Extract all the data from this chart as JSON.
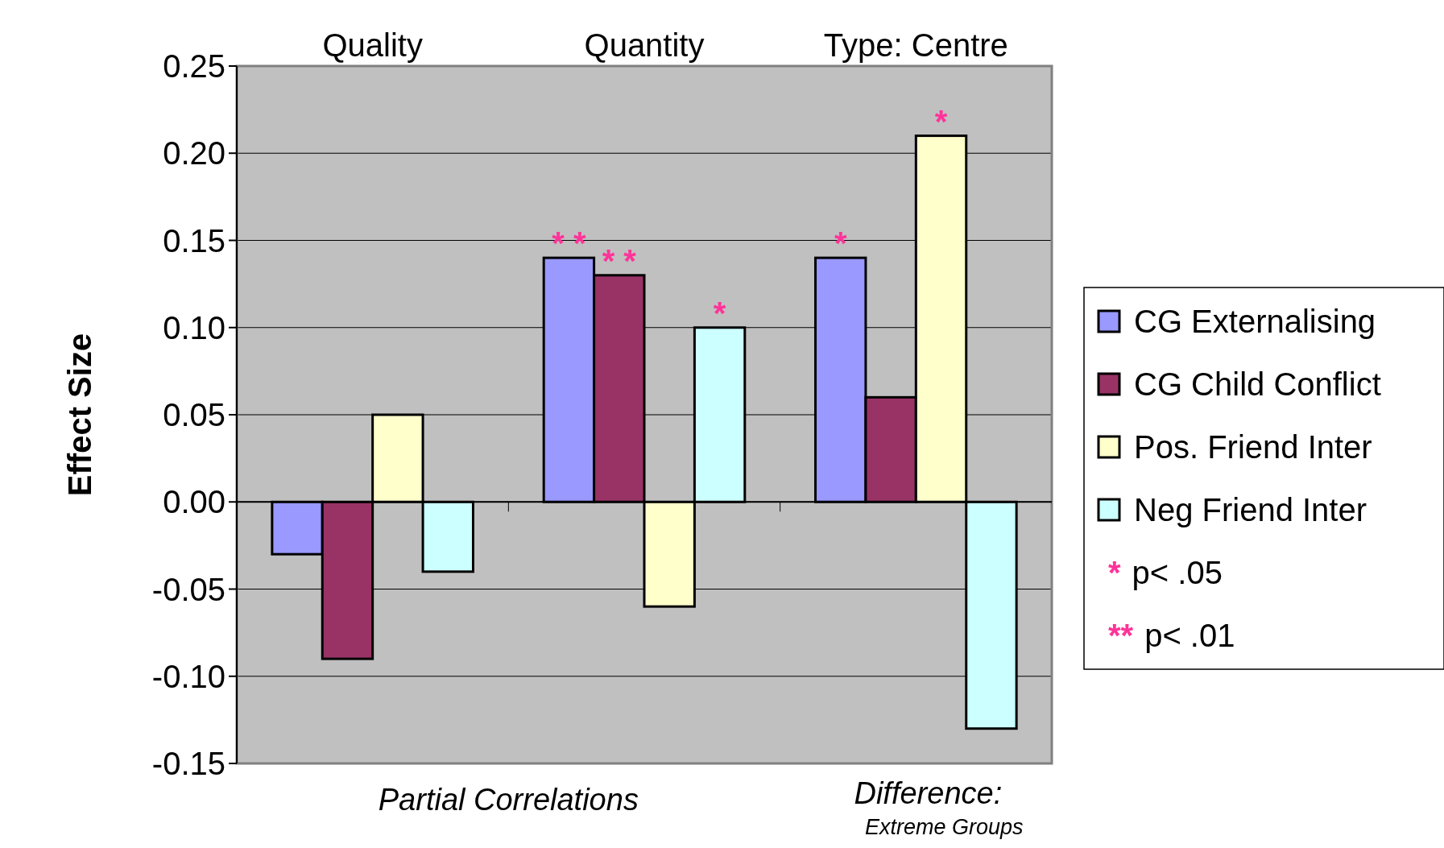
{
  "chart_data": {
    "type": "bar",
    "ylabel": "Effect Size",
    "categories": [
      "Quality",
      "Quantity",
      "Type: Centre"
    ],
    "series": [
      {
        "name": "CG Externalising",
        "color": "#9999ff",
        "values": [
          -0.03,
          0.14,
          0.14
        ],
        "value_labels": [
          null,
          "* *",
          "*"
        ]
      },
      {
        "name": "CG Child Conflict",
        "color": "#993366",
        "values": [
          -0.09,
          0.13,
          0.06
        ],
        "value_labels": [
          null,
          "* *",
          null
        ]
      },
      {
        "name": "Pos. Friend Inter",
        "color": "#ffffcc",
        "values": [
          0.05,
          -0.06,
          0.21
        ],
        "value_labels": [
          null,
          null,
          "*"
        ]
      },
      {
        "name": "Neg Friend Inter",
        "color": "#ccffff",
        "values": [
          -0.04,
          0.1,
          -0.13
        ],
        "value_labels": [
          null,
          "*",
          null
        ]
      }
    ],
    "ylim": [
      -0.15,
      0.25
    ],
    "yticks": [
      {
        "value": -0.15,
        "label": "-0.15"
      },
      {
        "value": -0.1,
        "label": "-0.10"
      },
      {
        "value": -0.05,
        "label": "-0.05"
      },
      {
        "value": 0,
        "label": "0.00"
      },
      {
        "value": 0.05,
        "label": "0.05"
      },
      {
        "value": 0.1,
        "label": "0.10"
      },
      {
        "value": 0.15,
        "label": "0.15"
      },
      {
        "value": 0.2,
        "label": "0.20"
      },
      {
        "value": 0.25,
        "label": "0.25"
      }
    ],
    "grid": "y",
    "legend": "right",
    "annotations": [
      "Partial Correlations",
      "Difference:",
      "Extreme Groups",
      "* p< .05",
      "** p< .01"
    ]
  }
}
